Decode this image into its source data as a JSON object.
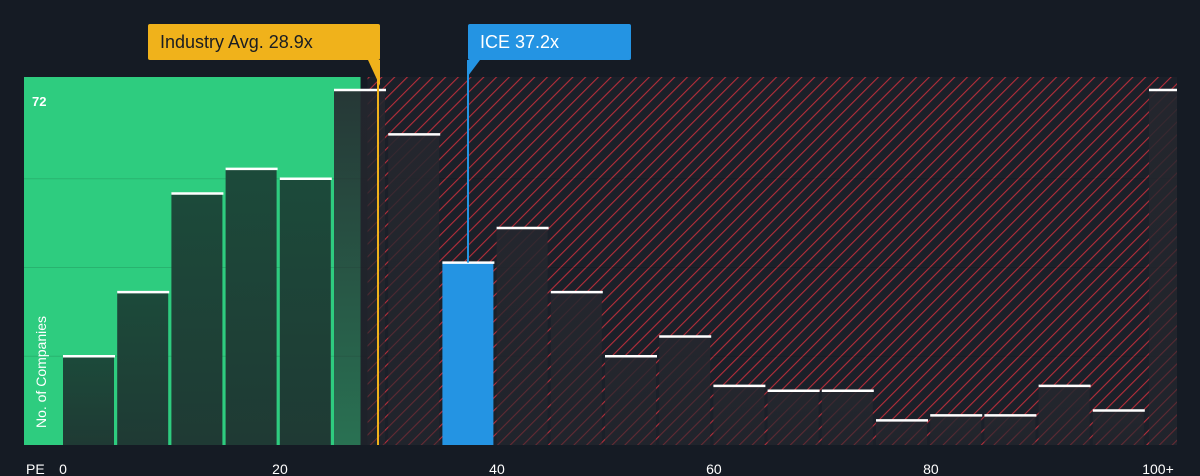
{
  "chart_data": {
    "type": "bar",
    "xlabel": "PE",
    "ylabel": "No. of Companies",
    "ymax_label": "72",
    "ylim": [
      0,
      72
    ],
    "x_ticks": [
      "0",
      "20",
      "40",
      "60",
      "80",
      "100+"
    ],
    "x_tick_values": [
      0,
      20,
      40,
      60,
      80,
      100
    ],
    "bin_width": 5,
    "bins": [
      {
        "start": 0,
        "value": 18
      },
      {
        "start": 5,
        "value": 31
      },
      {
        "start": 10,
        "value": 51
      },
      {
        "start": 15,
        "value": 56
      },
      {
        "start": 20,
        "value": 54
      },
      {
        "start": 25,
        "value": 72
      },
      {
        "start": 30,
        "value": 63
      },
      {
        "start": 35,
        "value": 37
      },
      {
        "start": 40,
        "value": 44
      },
      {
        "start": 45,
        "value": 31
      },
      {
        "start": 50,
        "value": 18
      },
      {
        "start": 55,
        "value": 22
      },
      {
        "start": 60,
        "value": 12
      },
      {
        "start": 65,
        "value": 11
      },
      {
        "start": 70,
        "value": 11
      },
      {
        "start": 75,
        "value": 5
      },
      {
        "start": 80,
        "value": 6
      },
      {
        "start": 85,
        "value": 6
      },
      {
        "start": 90,
        "value": 12
      },
      {
        "start": 95,
        "value": 7
      },
      {
        "start": 100,
        "value": 72
      }
    ],
    "industry_avg": {
      "label": "Industry Avg. 28.9x",
      "value": 28.9
    },
    "company": {
      "label": "ICE 37.2x",
      "value": 37.2
    },
    "colors": {
      "below_avg_zone": "#2ecc7f",
      "overvalued_hatch": "#c0303c",
      "bar_dark": "#1d3a32",
      "company_bar": "#2494e3",
      "industry_line": "#f0b21b"
    }
  }
}
